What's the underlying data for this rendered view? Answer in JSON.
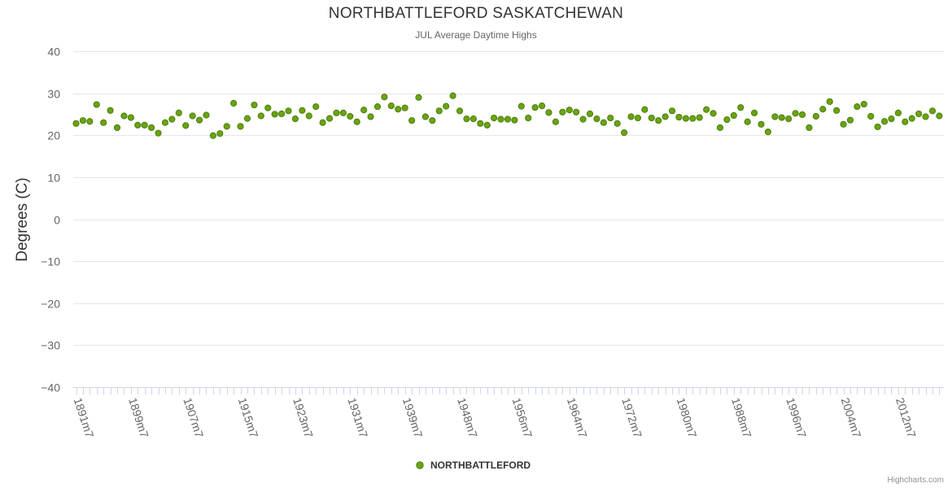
{
  "page": {
    "credits": "Highcharts.com"
  },
  "chart_data": {
    "type": "scatter",
    "title": "NORTHBATTLEFORD SASKATCHEWAN",
    "subtitle": "JUL Average Daytime Highs",
    "ylabel": "Degrees (C)",
    "xlabel": "",
    "ylim": [
      -40,
      40
    ],
    "yticks": [
      40,
      30,
      20,
      10,
      0,
      -10,
      -20,
      -30,
      -40
    ],
    "xticks": [
      "1891m7",
      "1899m7",
      "1907m7",
      "1915m7",
      "1923m7",
      "1931m7",
      "1939m7",
      "1948m7",
      "1956m7",
      "1964m7",
      "1972m7",
      "1980m7",
      "1988m7",
      "1996m7",
      "2004m7",
      "2012m7"
    ],
    "xtick_indices": [
      0,
      8,
      16,
      24,
      32,
      40,
      48,
      56,
      64,
      72,
      80,
      88,
      96,
      104,
      112,
      120
    ],
    "grid": true,
    "legend": {
      "position": "bottom-center",
      "label": "NORTHBATTLEFORD"
    },
    "colors": {
      "marker": "#6aa313",
      "marker_stroke": "#4c7f0a",
      "grid": "#e6e6e6",
      "axis": "#ccd6eb",
      "text": "#333333",
      "tick_text": "#666666"
    },
    "series": [
      {
        "name": "NORTHBATTLEFORD",
        "start_label": "1891m7",
        "values": [
          22.8,
          23.5,
          23.3,
          27.3,
          23.0,
          25.9,
          21.8,
          24.6,
          24.2,
          22.4,
          22.4,
          21.8,
          20.5,
          23.0,
          23.8,
          25.3,
          22.3,
          24.6,
          23.6,
          24.8,
          19.9,
          20.4,
          22.1,
          27.6,
          22.1,
          24.0,
          27.2,
          24.6,
          26.5,
          25.0,
          25.1,
          25.8,
          23.9,
          25.9,
          24.6,
          26.8,
          23.0,
          24.0,
          25.3,
          25.3,
          24.5,
          23.2,
          26.0,
          24.4,
          26.8,
          29.1,
          27.0,
          26.2,
          26.5,
          23.5,
          29.0,
          24.4,
          23.5,
          25.8,
          26.9,
          29.4,
          25.8,
          23.9,
          23.9,
          22.8,
          22.4,
          24.1,
          23.8,
          23.8,
          23.6,
          26.9,
          24.1,
          26.6,
          27.0,
          25.4,
          23.2,
          25.5,
          26.0,
          25.5,
          23.8,
          25.1,
          23.9,
          23.0,
          24.1,
          22.8,
          20.6,
          24.4,
          24.1,
          26.1,
          24.1,
          23.5,
          24.4,
          25.8,
          24.3,
          24.0,
          24.0,
          24.2,
          26.1,
          25.2,
          21.8,
          23.7,
          24.7,
          26.6,
          23.2,
          25.3,
          22.6,
          20.8,
          24.4,
          24.2,
          23.9,
          25.2,
          24.9,
          21.8,
          24.5,
          26.2,
          28.0,
          25.9,
          22.6,
          23.6,
          26.8,
          27.4,
          24.5,
          22.0,
          23.3,
          23.9,
          25.3,
          23.2,
          24.0,
          25.1,
          24.4,
          25.8,
          24.6
        ]
      }
    ]
  }
}
